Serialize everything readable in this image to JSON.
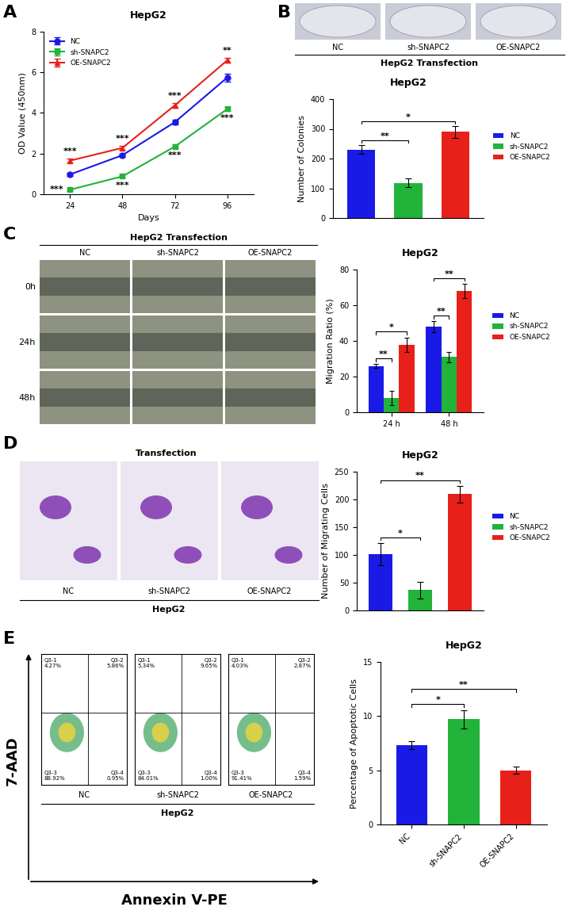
{
  "chart_data": [
    {
      "panel": "A",
      "type": "line",
      "title": "HepG2",
      "x_label": "Days",
      "y_label": "OD Value (450nm)",
      "categories": [
        "24",
        "48",
        "72",
        "96"
      ],
      "ylim": [
        0,
        8
      ],
      "yticks": [
        0,
        2,
        4,
        6,
        8
      ],
      "legend": "upper left",
      "series": [
        {
          "name": "NC",
          "color": "#1a1ae6",
          "marker": "circle",
          "values": [
            0.97,
            1.92,
            3.55,
            5.75
          ],
          "errors": [
            0.08,
            0.08,
            0.1,
            0.2
          ]
        },
        {
          "name": "sh-SNAPC2",
          "color": "#22b33a",
          "marker": "square",
          "values": [
            0.22,
            0.88,
            2.35,
            4.2
          ],
          "errors": [
            0.05,
            0.08,
            0.1,
            0.1
          ],
          "significance": [
            "***",
            "***",
            "***",
            "***"
          ]
        },
        {
          "name": "OE-SNAPC2",
          "color": "#e8201a",
          "marker": "triangle",
          "values": [
            1.65,
            2.28,
            4.38,
            6.6
          ],
          "errors": [
            0.1,
            0.1,
            0.12,
            0.12
          ],
          "significance": [
            "***",
            "***",
            "***",
            "**"
          ]
        }
      ]
    },
    {
      "panel": "B",
      "type": "bar",
      "title": "HepG2",
      "y_label": "Number of Colonies",
      "ylim": [
        0,
        400
      ],
      "yticks": [
        0,
        100,
        200,
        300,
        400
      ],
      "legend": "right",
      "tick_labels": "y",
      "series": [
        {
          "name": "NC",
          "color": "#1a1ae6",
          "values": [
            230
          ],
          "errors": [
            15
          ]
        },
        {
          "name": "sh-SNAPC2",
          "color": "#22b33a",
          "values": [
            118
          ],
          "errors": [
            15
          ]
        },
        {
          "name": "OE-SNAPC2",
          "color": "#e8201a",
          "values": [
            290
          ],
          "errors": [
            20
          ]
        }
      ],
      "comparisons": [
        {
          "from": "NC",
          "to": "sh-SNAPC2",
          "label": "**"
        },
        {
          "from": "NC",
          "to": "OE-SNAPC2",
          "label": "*"
        }
      ]
    },
    {
      "panel": "C",
      "type": "bar",
      "title": "HepG2",
      "y_label": "Migration Ratio (%)",
      "categories": [
        "24 h",
        "48 h"
      ],
      "ylim": [
        0,
        80
      ],
      "yticks": [
        0,
        20,
        40,
        60,
        80
      ],
      "legend": "right",
      "series": [
        {
          "name": "NC",
          "color": "#1a1ae6",
          "values": [
            26,
            48
          ],
          "errors": [
            1,
            3
          ]
        },
        {
          "name": "sh-SNAPC2",
          "color": "#22b33a",
          "values": [
            8,
            31
          ],
          "errors": [
            4,
            3
          ]
        },
        {
          "name": "OE-SNAPC2",
          "color": "#e8201a",
          "values": [
            38,
            68
          ],
          "errors": [
            4,
            4
          ]
        }
      ],
      "comparisons": [
        {
          "group": "24 h",
          "from": "NC",
          "to": "sh-SNAPC2",
          "label": "**"
        },
        {
          "group": "24 h",
          "from": "NC",
          "to": "OE-SNAPC2",
          "label": "*"
        },
        {
          "group": "48 h",
          "from": "NC",
          "to": "sh-SNAPC2",
          "label": "**"
        },
        {
          "group": "48 h",
          "from": "NC",
          "to": "OE-SNAPC2",
          "label": "**"
        }
      ]
    },
    {
      "panel": "D",
      "type": "bar",
      "title": "HepG2",
      "y_label": "Number of Migrating Cells",
      "ylim": [
        0,
        250
      ],
      "yticks": [
        0,
        50,
        100,
        150,
        200,
        250
      ],
      "legend": "right",
      "tick_labels": "y",
      "series": [
        {
          "name": "NC",
          "color": "#1a1ae6",
          "values": [
            102
          ],
          "errors": [
            20
          ]
        },
        {
          "name": "sh-SNAPC2",
          "color": "#22b33a",
          "values": [
            37
          ],
          "errors": [
            15
          ]
        },
        {
          "name": "OE-SNAPC2",
          "color": "#e8201a",
          "values": [
            210
          ],
          "errors": [
            15
          ]
        }
      ],
      "comparisons": [
        {
          "from": "NC",
          "to": "sh-SNAPC2",
          "label": "*"
        },
        {
          "from": "NC",
          "to": "OE-SNAPC2",
          "label": "**"
        }
      ]
    },
    {
      "panel": "E",
      "type": "bar",
      "title": "HepG2",
      "y_label": "Percentage of Apoptotic Cells",
      "categories": [
        "NC",
        "sh-SNAPC2",
        "OE-SNAPC2"
      ],
      "values": [
        7.3,
        9.7,
        5.0
      ],
      "errors": [
        0.35,
        0.85,
        0.35
      ],
      "colors": [
        "#1a1ae6",
        "#22b33a",
        "#e8201a"
      ],
      "ylim": [
        0,
        15
      ],
      "yticks": [
        0,
        5,
        10,
        15
      ],
      "comparisons": [
        {
          "from": "NC",
          "to": "sh-SNAPC2",
          "label": "*"
        },
        {
          "from": "NC",
          "to": "OE-SNAPC2",
          "label": "**"
        }
      ]
    }
  ],
  "colony_images": {
    "columns": [
      "NC",
      "sh-SNAPC2",
      "OE-SNAPC2"
    ],
    "caption": "HepG2 Transfection"
  },
  "wound_images": {
    "title": "HepG2 Transfection",
    "columns": [
      "NC",
      "sh-SNAPC2",
      "OE-SNAPC2"
    ],
    "rows": [
      "0h",
      "24h",
      "48h"
    ]
  },
  "transwell_images": {
    "title": "Transfection",
    "columns": [
      "NC",
      "sh-SNAPC2",
      "OE-SNAPC2"
    ],
    "caption": "HepG2"
  },
  "flow_cytometry": {
    "columns": [
      "NC",
      "sh-SNAPC2",
      "OE-SNAPC2"
    ],
    "caption": "HepG2",
    "y_label": "7-AAD",
    "x_label": "Annexin V-PE",
    "quadrants": [
      [
        {
          "name": "Q3-1",
          "text": "4.27%"
        },
        {
          "name": "Q3-2",
          "text": "5.86%"
        },
        {
          "name": "Q3-3",
          "text": "88.92%"
        },
        {
          "name": "Q3-4",
          "text": "0.95%"
        }
      ],
      [
        {
          "name": "Q3-1",
          "text": "5.34%"
        },
        {
          "name": "Q3-2",
          "text": "9.65%"
        },
        {
          "name": "Q3-3",
          "text": "84.01%"
        },
        {
          "name": "Q3-4",
          "text": "1.00%"
        }
      ],
      [
        {
          "name": "Q3-1",
          "text": "4.03%"
        },
        {
          "name": "Q3-2",
          "text": "2.87%"
        },
        {
          "name": "Q3-3",
          "text": "91.41%"
        },
        {
          "name": "Q3-4",
          "text": "1.59%"
        }
      ]
    ]
  }
}
